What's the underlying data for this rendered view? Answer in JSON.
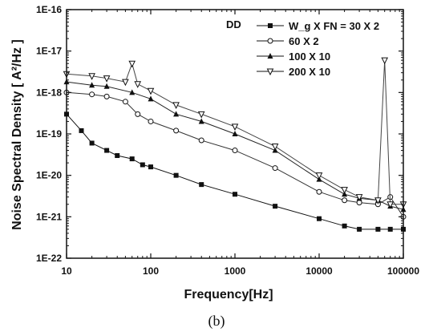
{
  "chart_data": {
    "type": "line",
    "x_scale": "log",
    "y_scale": "log",
    "xlim": [
      10,
      100000
    ],
    "ylim": [
      1e-22,
      1e-16
    ],
    "xlabel": "Frequency[Hz]",
    "ylabel": "Noise Spectral Density [ A²/Hz ]",
    "x_tick_labels": [
      "10",
      "100",
      "1000",
      "10000",
      "100000"
    ],
    "y_tick_labels": [
      "1E-22",
      "1E-21",
      "1E-20",
      "1E-19",
      "1E-18",
      "1E-17",
      "1E-16"
    ],
    "legend_title": "DD",
    "legend_placement": "top-right",
    "grid": false,
    "series": [
      {
        "name": "W_g X FN = 30 X 2",
        "marker": "square-filled",
        "x": [
          10,
          15,
          20,
          30,
          40,
          60,
          80,
          100,
          200,
          400,
          1000,
          3000,
          10000,
          20000,
          30000,
          50000,
          70000,
          100000
        ],
        "y": [
          3e-19,
          1.2e-19,
          6e-20,
          4e-20,
          3e-20,
          2.5e-20,
          1.8e-20,
          1.6e-20,
          1e-20,
          6e-21,
          3.5e-21,
          1.8e-21,
          9e-22,
          6e-22,
          5e-22,
          5e-22,
          5e-22,
          5e-22
        ]
      },
      {
        "name": "60 X 2",
        "marker": "circle-open",
        "x": [
          10,
          20,
          30,
          50,
          70,
          100,
          200,
          400,
          1000,
          3000,
          10000,
          20000,
          30000,
          50000,
          70000,
          100000
        ],
        "y": [
          1e-18,
          9e-19,
          8e-19,
          6e-19,
          3e-19,
          2e-19,
          1.2e-19,
          7e-20,
          4e-20,
          1.5e-20,
          4e-21,
          2.5e-21,
          2.2e-21,
          2e-21,
          3e-21,
          1e-21
        ]
      },
      {
        "name": "100 X 10",
        "marker": "triangle-filled",
        "x": [
          10,
          20,
          30,
          60,
          100,
          200,
          400,
          1000,
          3000,
          10000,
          20000,
          30000,
          50000,
          70000,
          100000
        ],
        "y": [
          1.8e-18,
          1.5e-18,
          1.4e-18,
          1e-18,
          7e-19,
          3e-19,
          2e-19,
          1e-19,
          4e-20,
          8e-21,
          3.5e-21,
          2.8e-21,
          2.5e-21,
          1.8e-21,
          1.5e-21
        ]
      },
      {
        "name": "200 X 10",
        "marker": "triangle-down-open",
        "x": [
          10,
          20,
          30,
          50,
          60,
          70,
          100,
          200,
          400,
          1000,
          3000,
          10000,
          20000,
          30000,
          50000,
          60000,
          70000,
          100000
        ],
        "y": [
          2.8e-18,
          2.5e-18,
          2.2e-18,
          1.8e-18,
          5e-18,
          1.6e-18,
          1.1e-18,
          5e-19,
          3e-19,
          1.5e-19,
          5e-20,
          1e-20,
          4.5e-21,
          3e-21,
          2.5e-21,
          6e-18,
          2e-21,
          2e-21
        ]
      }
    ]
  },
  "caption": "(b)"
}
